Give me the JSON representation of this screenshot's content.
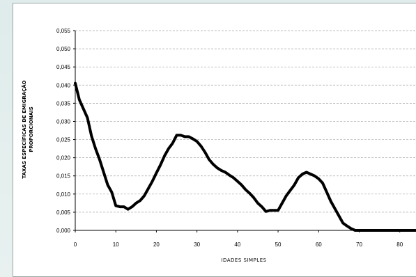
{
  "chart_data": {
    "type": "line",
    "ylabel_line1": "TAXAS ESPECÍFICAS DE EMIGRAÇÃO",
    "ylabel_line2": "PROPORCIONAIS",
    "xlabel": "IDADES SIMPLES",
    "xlim": [
      0,
      84
    ],
    "ylim": [
      0,
      0.055
    ],
    "grid": true,
    "x_ticks": [
      "0",
      "10",
      "20",
      "30",
      "40",
      "50",
      "60",
      "70",
      "80"
    ],
    "y_ticks": [
      "0,000",
      "0,005",
      "0,010",
      "0,015",
      "0,020",
      "0,025",
      "0,030",
      "0,035",
      "0,040",
      "0,045",
      "0,050",
      "0,055"
    ],
    "series": [
      {
        "color": "#000000",
        "x": [
          0,
          1,
          2,
          3,
          4,
          5,
          6,
          7,
          8,
          9,
          10,
          11,
          12,
          13,
          14,
          15,
          16,
          17,
          18,
          19,
          20,
          21,
          22,
          23,
          24,
          25,
          26,
          27,
          28,
          29,
          30,
          31,
          32,
          33,
          34,
          35,
          36,
          37,
          38,
          39,
          40,
          41,
          42,
          43,
          44,
          45,
          46,
          47,
          48,
          49,
          50,
          51,
          52,
          53,
          54,
          55,
          56,
          57,
          58,
          59,
          60,
          61,
          62,
          63,
          64,
          65,
          66,
          67,
          68,
          69,
          70,
          71,
          72,
          73,
          74,
          75,
          76,
          77,
          78,
          79,
          80,
          81,
          82,
          83,
          84
        ],
        "values": [
          0.0405,
          0.036,
          0.0335,
          0.031,
          0.026,
          0.0225,
          0.0195,
          0.016,
          0.0125,
          0.0105,
          0.0068,
          0.0065,
          0.0065,
          0.0058,
          0.0065,
          0.0075,
          0.0082,
          0.0095,
          0.0115,
          0.0135,
          0.0158,
          0.018,
          0.0205,
          0.0225,
          0.024,
          0.0262,
          0.0262,
          0.0258,
          0.0258,
          0.0252,
          0.0245,
          0.0232,
          0.0215,
          0.0195,
          0.0182,
          0.0172,
          0.0165,
          0.016,
          0.0152,
          0.0145,
          0.0135,
          0.0125,
          0.0112,
          0.0102,
          0.009,
          0.0075,
          0.0065,
          0.0052,
          0.0055,
          0.0055,
          0.0055,
          0.0075,
          0.0095,
          0.011,
          0.0125,
          0.0145,
          0.0155,
          0.016,
          0.0155,
          0.015,
          0.0142,
          0.013,
          0.0105,
          0.008,
          0.006,
          0.004,
          0.002,
          0.0012,
          0.0005,
          0,
          0,
          0,
          0,
          0,
          0,
          0,
          0,
          0,
          0,
          0,
          0,
          0,
          0,
          0,
          0
        ]
      }
    ]
  }
}
